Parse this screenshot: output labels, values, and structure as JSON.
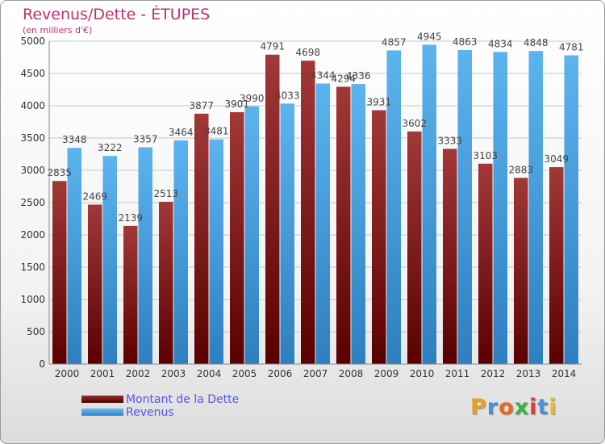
{
  "header": {
    "title": "Revenus/Dette - ÉTUPES",
    "subtitle": "(en milliers d'€)"
  },
  "legend": {
    "items": [
      {
        "label": "Montant de la Dette",
        "color": "#7a1010"
      },
      {
        "label": "Revenus",
        "color": "#4ea6e8"
      }
    ]
  },
  "logo": {
    "text": "Proxiti",
    "letter_colors": [
      "#e8a020",
      "#4a90d9",
      "#e86a20",
      "#3cb04a",
      "#d9402a",
      "#4a90d9",
      "#e8c020"
    ]
  },
  "colors": {
    "debt_top": "#a23838",
    "debt_bottom": "#5a0000",
    "revenue_top": "#5cb4ee",
    "revenue_bottom": "#2e7fc0",
    "grid": "#c8c8c8",
    "axis_text": "#333333",
    "value_text": "#444444"
  },
  "chart_data": {
    "type": "bar",
    "title": "Revenus/Dette - ÉTUPES",
    "subtitle": "(en milliers d'€)",
    "categories": [
      "2000",
      "2001",
      "2002",
      "2003",
      "2004",
      "2005",
      "2006",
      "2007",
      "2008",
      "2009",
      "2010",
      "2011",
      "2012",
      "2013",
      "2014"
    ],
    "series": [
      {
        "name": "Montant de la Dette",
        "values": [
          2835,
          2469,
          2139,
          2513,
          3877,
          3901,
          4791,
          4698,
          4294,
          3931,
          3602,
          3333,
          3103,
          2883,
          3049
        ]
      },
      {
        "name": "Revenus",
        "values": [
          3348,
          3222,
          3357,
          3464,
          3481,
          3990,
          4033,
          4344,
          4336,
          4857,
          4945,
          4863,
          4834,
          4848,
          4781
        ]
      }
    ],
    "ylim": [
      0,
      5000
    ],
    "yticks": [
      0,
      500,
      1000,
      1500,
      2000,
      2500,
      3000,
      3500,
      4000,
      4500,
      5000
    ],
    "grid": true,
    "legend_position": "bottom-left"
  }
}
